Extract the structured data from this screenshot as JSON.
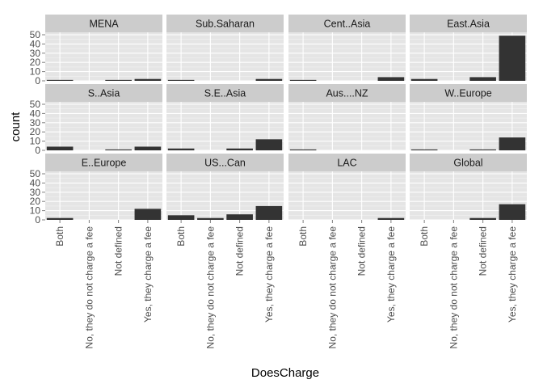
{
  "chart_data": {
    "type": "bar",
    "xlabel": "DoesCharge",
    "ylabel": "count",
    "ylim": [
      0,
      50
    ],
    "yticks": [
      0,
      10,
      20,
      30,
      40,
      50
    ],
    "grid": true,
    "facet_layout": "3 rows x 4 columns",
    "categories": [
      "Both",
      "No, they do not charge a fee",
      "Not defined",
      "Yes, they charge a fee"
    ],
    "panels": [
      {
        "label": "MENA",
        "values": [
          1,
          0,
          1,
          2
        ]
      },
      {
        "label": "Sub.Saharan",
        "values": [
          1,
          0,
          0,
          2
        ]
      },
      {
        "label": "Cent..Asia",
        "values": [
          1,
          0,
          0,
          4
        ]
      },
      {
        "label": "East.Asia",
        "values": [
          2,
          0,
          4,
          49
        ]
      },
      {
        "label": "S..Asia",
        "values": [
          4,
          0,
          1,
          4
        ]
      },
      {
        "label": "S.E..Asia",
        "values": [
          2,
          0,
          2,
          12
        ]
      },
      {
        "label": "Aus....NZ",
        "values": [
          1,
          0,
          0,
          0
        ]
      },
      {
        "label": "W..Europe",
        "values": [
          1,
          0,
          1,
          14
        ]
      },
      {
        "label": "E..Europe",
        "values": [
          2,
          0,
          0,
          12
        ]
      },
      {
        "label": "US...Can",
        "values": [
          5,
          2,
          6,
          15
        ]
      },
      {
        "label": "LAC",
        "values": [
          0,
          0,
          0,
          2
        ]
      },
      {
        "label": "Global",
        "values": [
          0,
          0,
          2,
          17
        ]
      }
    ]
  },
  "colors": {
    "panel_bg": "#e5e5e5",
    "strip_bg": "#cccccc",
    "grid_major": "#ffffff",
    "grid_minor": "#f2f2f2",
    "bar": "#333333",
    "tick_label": "#4d4d4d",
    "text": "#000000"
  }
}
